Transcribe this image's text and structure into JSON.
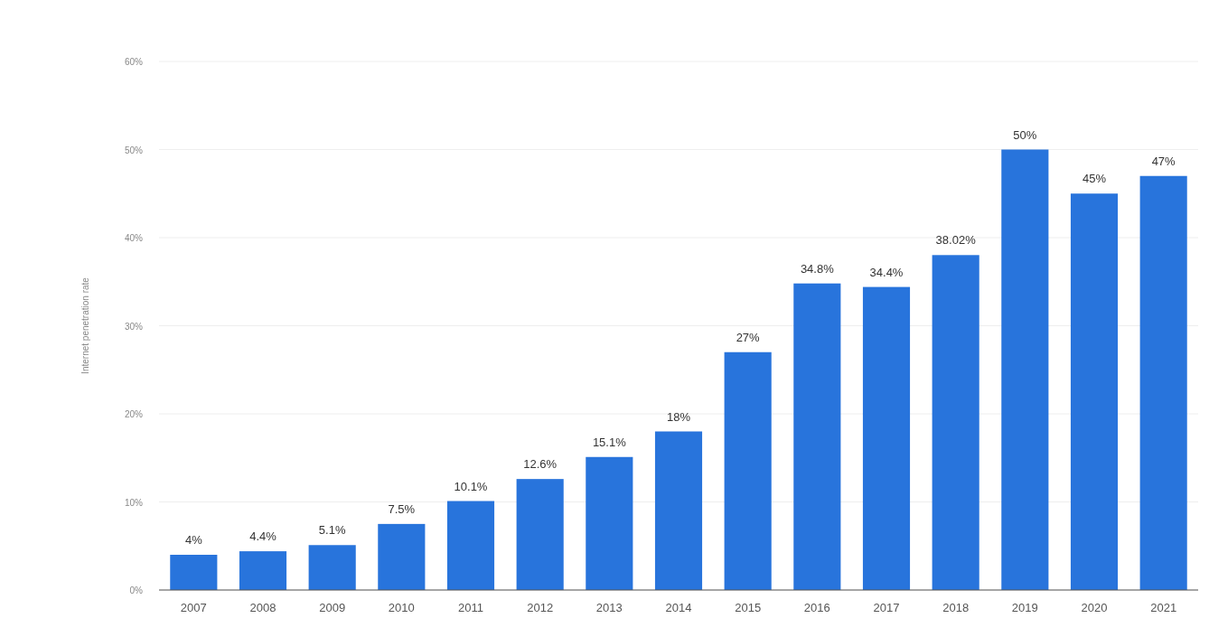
{
  "chart_data": {
    "type": "bar",
    "ylabel": "Internet penetration rate",
    "categories": [
      "2007",
      "2008",
      "2009",
      "2010",
      "2011",
      "2012",
      "2013",
      "2014",
      "2015",
      "2016",
      "2017",
      "2018",
      "2019",
      "2020",
      "2021"
    ],
    "values": [
      4,
      4.4,
      5.1,
      7.5,
      10.1,
      12.6,
      15.1,
      18,
      27,
      34.8,
      34.4,
      38.02,
      50,
      45,
      47
    ],
    "value_labels": [
      "4%",
      "4.4%",
      "5.1%",
      "7.5%",
      "10.1%",
      "12.6%",
      "15.1%",
      "18%",
      "27%",
      "34.8%",
      "34.4%",
      "38.02%",
      "50%",
      "45%",
      "47%"
    ],
    "color": "#2874dc",
    "ylim": [
      0,
      60
    ],
    "yticks": [
      {
        "value": 0,
        "label": "0%"
      },
      {
        "value": 10,
        "label": "10%"
      },
      {
        "value": 20,
        "label": "20%"
      },
      {
        "value": 30,
        "label": "30%"
      },
      {
        "value": 40,
        "label": "40%"
      },
      {
        "value": 50,
        "label": "50%"
      },
      {
        "value": 60,
        "label": "60%"
      }
    ],
    "grid": "y"
  }
}
